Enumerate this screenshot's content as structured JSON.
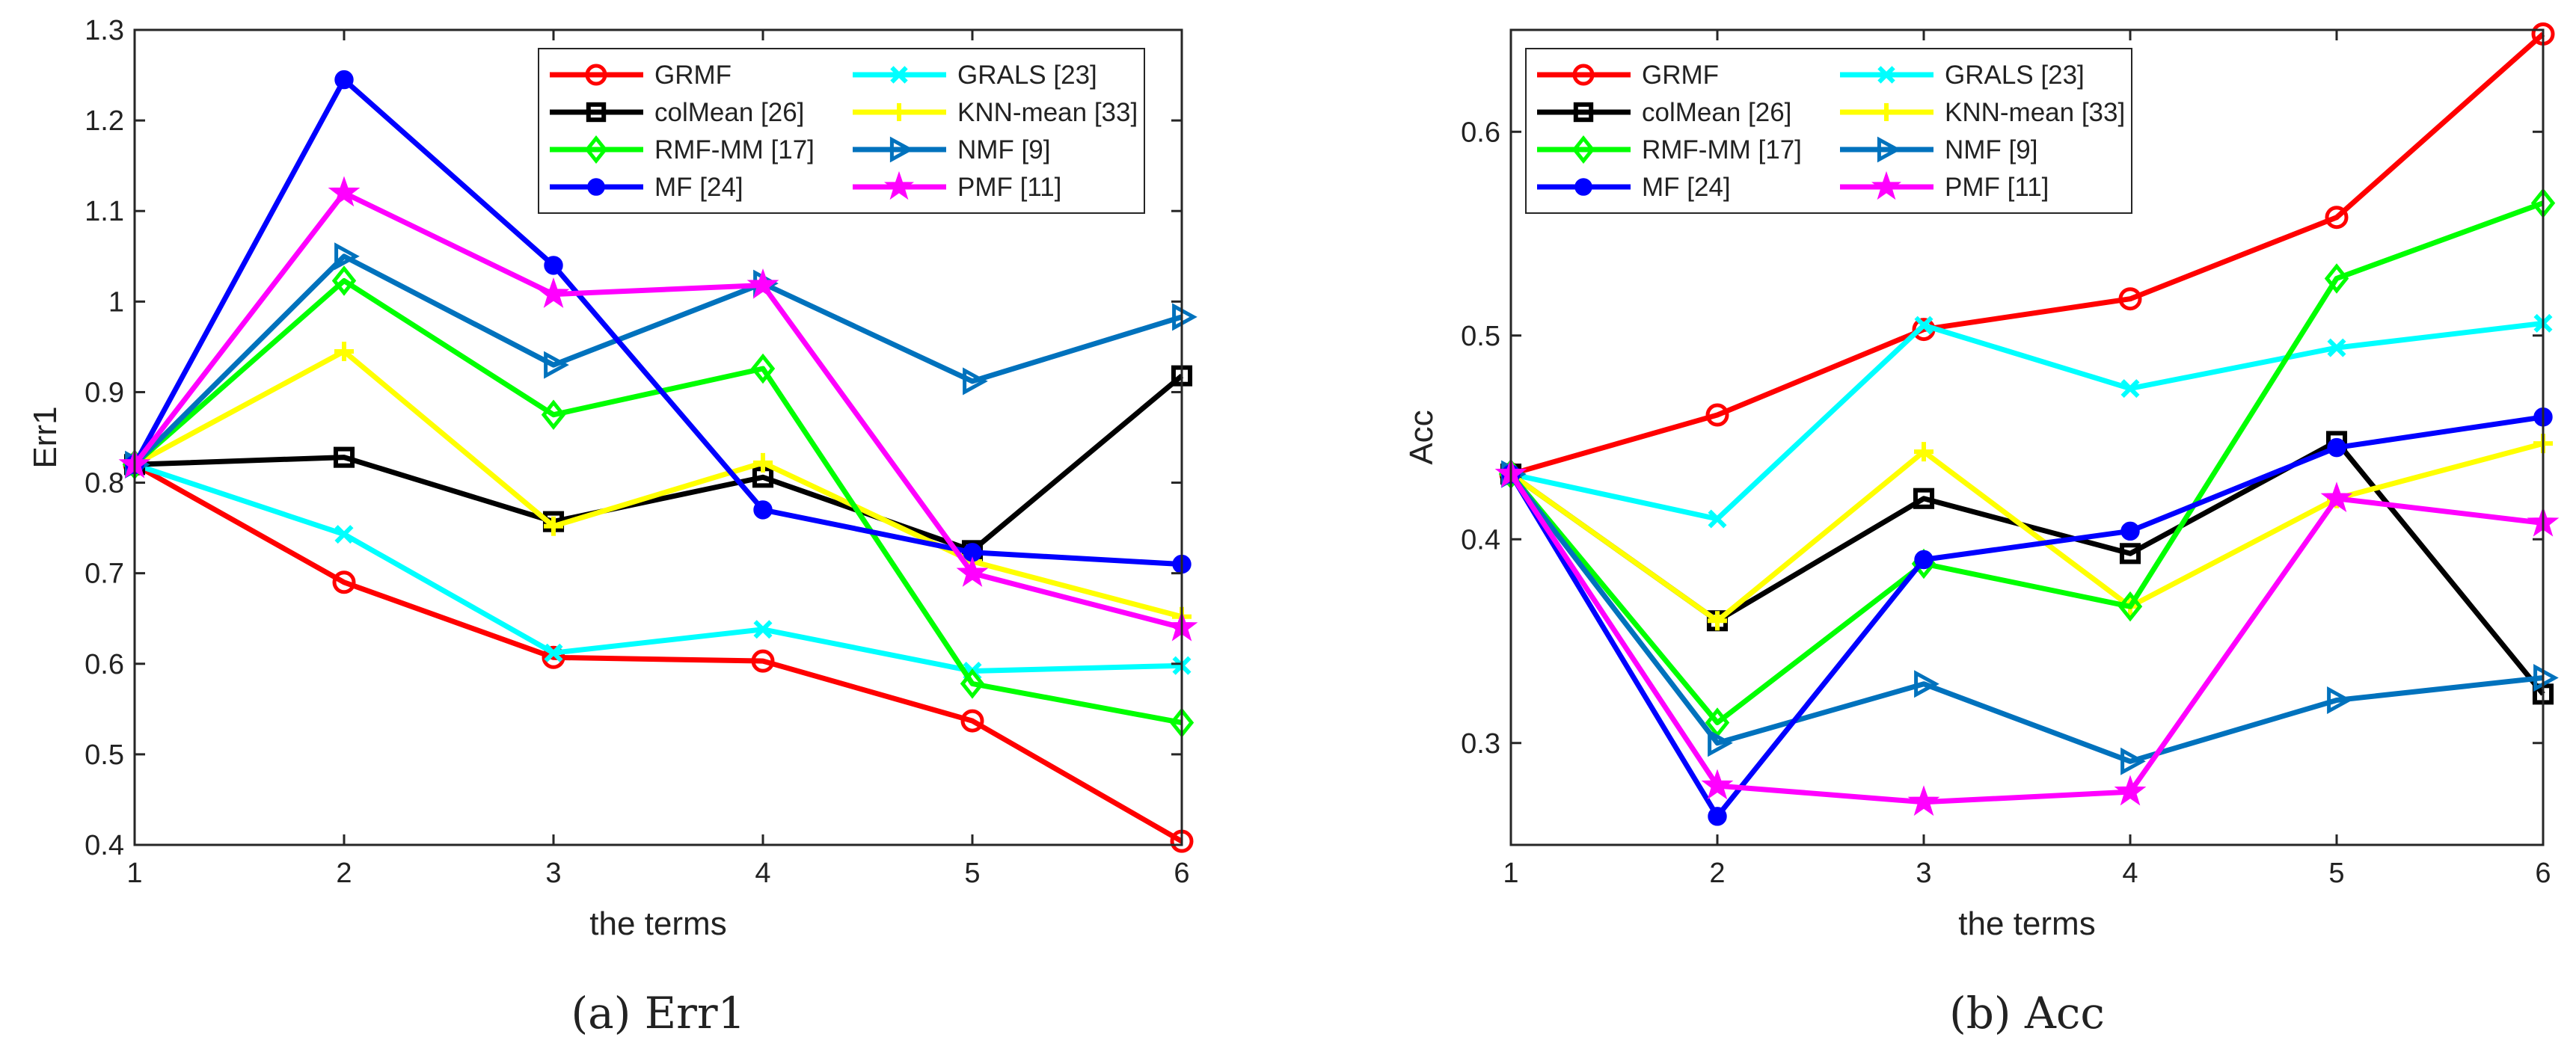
{
  "figure": {
    "captions": [
      "(a)  Err1",
      "(b)  Acc"
    ]
  },
  "chart_data": [
    {
      "type": "line",
      "title": "",
      "caption": "(a)  Err1",
      "xlabel": "the terms",
      "ylabel": "Err1",
      "x": [
        1,
        2,
        3,
        4,
        5,
        6
      ],
      "xlim": [
        1,
        6
      ],
      "ylim": [
        0.4,
        1.3
      ],
      "xticks": [
        1,
        2,
        3,
        4,
        5,
        6
      ],
      "yticks": [
        0.4,
        0.5,
        0.6,
        0.7,
        0.8,
        0.9,
        1,
        1.1,
        1.2,
        1.3
      ],
      "ytick_labels": [
        "0.4",
        "0.5",
        "0.6",
        "0.7",
        "0.8",
        "0.9",
        "1",
        "1.1",
        "1.2",
        "1.3"
      ],
      "grid": false,
      "legend_position": "top-right",
      "series": [
        {
          "name": "GRMF",
          "color": "#ff0000",
          "marker": "circle-open",
          "values": [
            0.82,
            0.69,
            0.607,
            0.603,
            0.537,
            0.404
          ]
        },
        {
          "name": "GRALS [23]",
          "color": "#00ffff",
          "marker": "x",
          "values": [
            0.82,
            0.743,
            0.612,
            0.638,
            0.592,
            0.598
          ]
        },
        {
          "name": "colMean [26]",
          "color": "#000000",
          "marker": "square-open",
          "values": [
            0.82,
            0.828,
            0.757,
            0.806,
            0.725,
            0.918
          ]
        },
        {
          "name": "KNN-mean [33]",
          "color": "#ffff00",
          "marker": "plus",
          "values": [
            0.82,
            0.945,
            0.752,
            0.822,
            0.713,
            0.652
          ]
        },
        {
          "name": "RMF-MM [17]",
          "color": "#00ff00",
          "marker": "diamond-open",
          "values": [
            0.82,
            1.023,
            0.875,
            0.926,
            0.578,
            0.535
          ]
        },
        {
          "name": "NMF [9]",
          "color": "#0072bd",
          "marker": "triangle-right",
          "values": [
            0.82,
            1.05,
            0.93,
            1.02,
            0.912,
            0.983
          ]
        },
        {
          "name": "MF [24]",
          "color": "#0000ff",
          "marker": "circle-filled",
          "values": [
            0.82,
            1.245,
            1.04,
            0.77,
            0.723,
            0.71
          ]
        },
        {
          "name": "PMF [11]",
          "color": "#ff00ff",
          "marker": "star",
          "values": [
            0.82,
            1.12,
            1.008,
            1.018,
            0.7,
            0.64
          ]
        }
      ]
    },
    {
      "type": "line",
      "title": "",
      "caption": "(b)  Acc",
      "xlabel": "the terms",
      "ylabel": "Acc",
      "x": [
        1,
        2,
        3,
        4,
        5,
        6
      ],
      "xlim": [
        1,
        6
      ],
      "ylim": [
        0.25,
        0.65
      ],
      "xticks": [
        1,
        2,
        3,
        4,
        5,
        6
      ],
      "yticks": [
        0.3,
        0.4,
        0.5,
        0.6
      ],
      "ytick_labels": [
        "0.3",
        "0.4",
        "0.5",
        "0.6"
      ],
      "grid": false,
      "legend_position": "top-left",
      "series": [
        {
          "name": "GRMF",
          "color": "#ff0000",
          "marker": "circle-open",
          "values": [
            0.432,
            0.461,
            0.503,
            0.518,
            0.558,
            0.648
          ]
        },
        {
          "name": "GRALS [23]",
          "color": "#00ffff",
          "marker": "x",
          "values": [
            0.432,
            0.41,
            0.505,
            0.474,
            0.494,
            0.506
          ]
        },
        {
          "name": "colMean [26]",
          "color": "#000000",
          "marker": "square-open",
          "values": [
            0.432,
            0.36,
            0.42,
            0.393,
            0.448,
            0.324
          ]
        },
        {
          "name": "KNN-mean [33]",
          "color": "#ffff00",
          "marker": "plus",
          "values": [
            0.432,
            0.36,
            0.443,
            0.367,
            0.42,
            0.447
          ]
        },
        {
          "name": "RMF-MM [17]",
          "color": "#00ff00",
          "marker": "diamond-open",
          "values": [
            0.432,
            0.31,
            0.388,
            0.367,
            0.528,
            0.565
          ]
        },
        {
          "name": "NMF [9]",
          "color": "#0072bd",
          "marker": "triangle-right",
          "values": [
            0.432,
            0.3,
            0.329,
            0.291,
            0.321,
            0.332
          ]
        },
        {
          "name": "MF [24]",
          "color": "#0000ff",
          "marker": "circle-filled",
          "values": [
            0.432,
            0.264,
            0.39,
            0.404,
            0.445,
            0.46
          ]
        },
        {
          "name": "PMF [11]",
          "color": "#ff00ff",
          "marker": "star",
          "values": [
            0.432,
            0.279,
            0.271,
            0.276,
            0.42,
            0.408
          ]
        }
      ]
    }
  ]
}
